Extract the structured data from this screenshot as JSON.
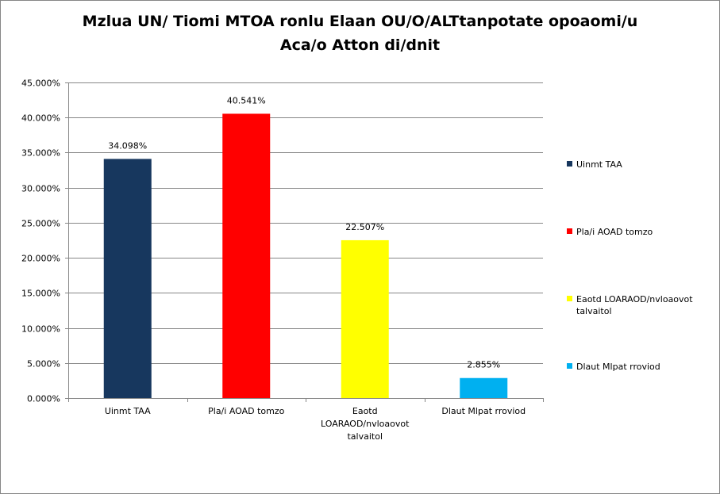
{
  "chart_data": {
    "type": "bar",
    "title": "Mzlua UN/ Tiomi MTOA ronlu Elaan OU/O/ALTtanpotate opoaomi/u Aca/o Atton di/dnit",
    "title_lines": [
      "Mzlua UN/ Tiomi MTOA ronlu Elaan OU/O/ALTtanpotate opoaomi/u",
      "Aca/o Atton di/dnit"
    ],
    "categories": [
      "Uinmt TAA",
      "Pla/i AOAD tomzo",
      "Eaotd LOARAOD/nvloaovot talvaitol",
      "Dlaut Mlpat rroviod"
    ],
    "category_label_lines": [
      [
        "Uinmt TAA"
      ],
      [
        "Pla/i AOAD tomzo"
      ],
      [
        "Eaotd",
        "LOARAOD/nvloaovot",
        "talvaitol"
      ],
      [
        "Dlaut Mlpat rroviod"
      ]
    ],
    "values": [
      34.098,
      40.541,
      22.507,
      2.855
    ],
    "data_labels": [
      "34.098%",
      "40.541%",
      "22.507%",
      "2.855%"
    ],
    "colors": [
      "#17375e",
      "#ff0000",
      "#ffff00",
      "#00b0f0"
    ],
    "ylim": [
      0,
      45
    ],
    "yticks": [
      0,
      5,
      10,
      15,
      20,
      25,
      30,
      35,
      40,
      45
    ],
    "ytick_labels": [
      "0.000%",
      "5.000%",
      "10.000%",
      "15.000%",
      "20.000%",
      "25.000%",
      "30.000%",
      "35.000%",
      "40.000%",
      "45.000%"
    ],
    "xlabel": "",
    "ylabel": "",
    "grid": true,
    "legend_position": "right",
    "legend": [
      {
        "label": "Uinmt TAA",
        "label_lines": [
          "Uinmt TAA"
        ],
        "color": "#17375e"
      },
      {
        "label": "Pla/i AOAD tomzo",
        "label_lines": [
          "Pla/i AOAD tomzo"
        ],
        "color": "#ff0000"
      },
      {
        "label": "Eaotd LOARAOD/nvloaovot talvaitol",
        "label_lines": [
          "Eaotd LOARAOD/nvloaovot",
          "talvaitol"
        ],
        "color": "#ffff00"
      },
      {
        "label": "Dlaut Mlpat rroviod",
        "label_lines": [
          "Dlaut Mlpat rroviod"
        ],
        "color": "#00b0f0"
      }
    ]
  }
}
